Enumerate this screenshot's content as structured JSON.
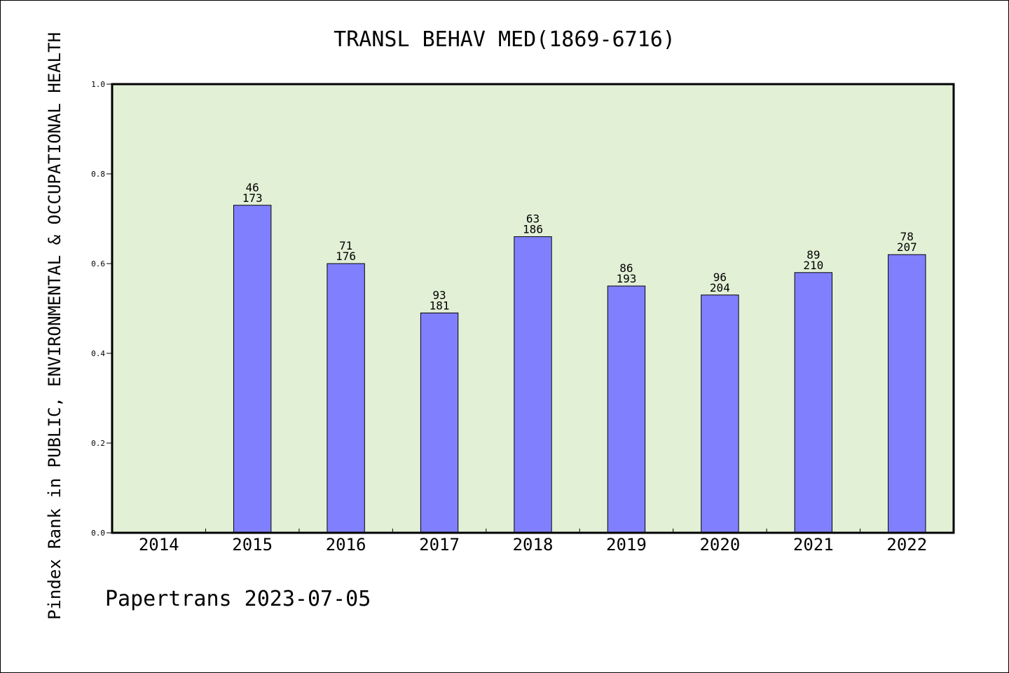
{
  "chart_data": {
    "type": "bar",
    "title": "TRANSL BEHAV MED(1869-6716)",
    "ylabel": "Pindex Rank in PUBLIC, ENVIRONMENTAL & OCCUPATIONAL HEALTH",
    "xlabel": "",
    "ylim": [
      0,
      1.0
    ],
    "yticks": [
      "0.0",
      "0.2",
      "0.4",
      "0.6",
      "0.8",
      "1.0"
    ],
    "categories": [
      "2014",
      "2015",
      "2016",
      "2017",
      "2018",
      "2019",
      "2020",
      "2021",
      "2022"
    ],
    "values": [
      null,
      0.73,
      0.6,
      0.49,
      0.66,
      0.55,
      0.53,
      0.58,
      0.62
    ],
    "rank_labels": [
      "",
      "46",
      "71",
      "93",
      "63",
      "86",
      "96",
      "89",
      "78"
    ],
    "total_labels": [
      "",
      "173",
      "176",
      "181",
      "186",
      "193",
      "204",
      "210",
      "207"
    ],
    "grid": false,
    "colors": {
      "plot_background": "#e2f0d6",
      "bar_fill": "#8080ff",
      "bar_stroke": "#000000"
    }
  },
  "footer": {
    "credit": "Papertrans 2023-07-05"
  }
}
